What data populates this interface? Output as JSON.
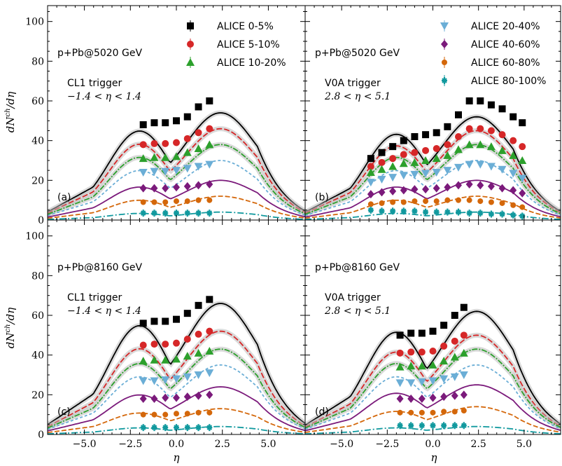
{
  "colors": {
    "c0_5": "#000000",
    "c5_10": "#d62728",
    "c10_20": "#2ca02c",
    "c20_40": "#6baed6",
    "c40_60": "#7b1a7b",
    "c60_80": "#d4670a",
    "c80_100": "#11999e",
    "band": "#aaaaaa"
  },
  "legend": [
    {
      "label": "ALICE 0-5%",
      "marker": "square",
      "color": "#000000"
    },
    {
      "label": "ALICE 5-10%",
      "marker": "circle",
      "color": "#d62728"
    },
    {
      "label": "ALICE 10-20%",
      "marker": "triangle-up",
      "color": "#2ca02c"
    },
    {
      "label": "ALICE 20-40%",
      "marker": "triangle-down",
      "color": "#6baed6"
    },
    {
      "label": "ALICE 40-60%",
      "marker": "diamond",
      "color": "#7b1a7b"
    },
    {
      "label": "ALICE 60-80%",
      "marker": "circle-small",
      "color": "#d4670a"
    },
    {
      "label": "ALICE 80-100%",
      "marker": "star",
      "color": "#11999e"
    }
  ],
  "axes": {
    "xlabel": "η",
    "ylabel": "dN^ch/dη",
    "xlim": [
      -7,
      7
    ],
    "ylim": [
      0,
      108
    ],
    "xticks": [
      "−5.0",
      "−2.5",
      "0.0",
      "2.5",
      "5.0"
    ],
    "yticks": [
      "0",
      "20",
      "40",
      "60",
      "80",
      "100"
    ]
  },
  "panels": [
    {
      "tag": "(a)",
      "system": "p+Pb@5020 GeV",
      "trigger": "CL1 trigger",
      "range": "−1.4 < η < 1.4"
    },
    {
      "tag": "(b)",
      "system": "p+Pb@5020 GeV",
      "trigger": "V0A trigger",
      "range": "2.8 < η < 5.1"
    },
    {
      "tag": "(c)",
      "system": "p+Pb@8160 GeV",
      "trigger": "CL1 trigger",
      "range": "−1.4 < η < 1.4"
    },
    {
      "tag": "(d)",
      "system": "p+Pb@8160 GeV",
      "trigger": "V0A trigger",
      "range": "2.8 < η < 5.1"
    }
  ],
  "chart_data": [
    {
      "type": "scatter",
      "panel": "(a)",
      "x": [
        -1.8,
        -1.2,
        -0.6,
        0.0,
        0.6,
        1.2,
        1.8
      ],
      "series": [
        {
          "name": "ALICE 0-5%",
          "values": [
            48,
            49,
            49,
            50,
            52,
            57,
            60
          ]
        },
        {
          "name": "ALICE 5-10%",
          "values": [
            38,
            38.5,
            38.5,
            39,
            41,
            44,
            46
          ]
        },
        {
          "name": "ALICE 10-20%",
          "values": [
            31,
            31.5,
            31.5,
            32,
            34,
            36,
            38
          ]
        },
        {
          "name": "ALICE 20-40%",
          "values": [
            24,
            24.5,
            24.5,
            25,
            26,
            27,
            28
          ]
        },
        {
          "name": "ALICE 40-60%",
          "values": [
            16,
            16,
            16,
            16.5,
            17,
            17.5,
            18
          ]
        },
        {
          "name": "ALICE 60-80%",
          "values": [
            9,
            9,
            9,
            9.5,
            9.5,
            10,
            10
          ]
        },
        {
          "name": "ALICE 80-100%",
          "values": [
            3.5,
            3.5,
            3.5,
            3.5,
            3.5,
            3.5,
            3.5
          ]
        }
      ],
      "model_peaks": [
        54,
        46,
        38,
        30,
        20,
        12,
        4
      ]
    },
    {
      "type": "scatter",
      "panel": "(b)",
      "x": [
        -3.4,
        -2.8,
        -2.2,
        -1.6,
        -1.0,
        -0.4,
        0.2,
        0.8,
        1.4,
        2.0,
        2.6,
        3.2,
        3.8,
        4.4,
        4.9
      ],
      "series": [
        {
          "name": "ALICE 0-5%",
          "values": [
            31,
            34,
            37,
            40,
            42,
            43,
            44,
            47,
            53,
            60,
            60,
            58,
            56,
            52,
            49
          ]
        },
        {
          "name": "ALICE 5-10%",
          "values": [
            27,
            29,
            31,
            33,
            34,
            35,
            36,
            38,
            42,
            46,
            46,
            45,
            43,
            40,
            37
          ]
        },
        {
          "name": "ALICE 10-20%",
          "values": [
            24,
            25.5,
            27,
            28.5,
            29,
            30,
            31,
            32.5,
            35.5,
            38,
            38,
            37,
            35,
            32.5,
            30
          ]
        },
        {
          "name": "ALICE 20-40%",
          "values": [
            19,
            20.5,
            21.5,
            22.5,
            23,
            23.5,
            24,
            25,
            26.5,
            28,
            28,
            27,
            25.5,
            23.5,
            21
          ]
        },
        {
          "name": "ALICE 40-60%",
          "values": [
            13,
            14,
            14.5,
            15,
            15.5,
            15.5,
            16,
            16.5,
            17.5,
            18,
            17.5,
            17,
            16,
            15,
            13.5
          ]
        },
        {
          "name": "ALICE 60-80%",
          "values": [
            8,
            8.5,
            9,
            9,
            9.5,
            9.5,
            9.5,
            10,
            10,
            10,
            9.5,
            9,
            8.5,
            7.5,
            6.5
          ]
        },
        {
          "name": "ALICE 80-100%",
          "values": [
            5,
            4.5,
            4.5,
            4.5,
            4.5,
            4,
            4,
            4,
            4,
            3.5,
            3.5,
            3,
            3,
            2.5,
            2
          ]
        }
      ],
      "model_peaks": [
        52,
        45,
        38,
        30,
        20,
        12,
        4
      ]
    },
    {
      "type": "scatter",
      "panel": "(c)",
      "x": [
        -1.8,
        -1.2,
        -0.6,
        0.0,
        0.6,
        1.2,
        1.8
      ],
      "series": [
        {
          "name": "ALICE 0-5%",
          "values": [
            56,
            57,
            57,
            58,
            61,
            65,
            68
          ]
        },
        {
          "name": "ALICE 5-10%",
          "values": [
            45,
            45.5,
            45.5,
            46,
            48,
            50.5,
            52
          ]
        },
        {
          "name": "ALICE 10-20%",
          "values": [
            37,
            37.5,
            37.5,
            38,
            39.5,
            41,
            42
          ]
        },
        {
          "name": "ALICE 20-40%",
          "values": [
            27,
            27,
            27.5,
            28,
            29,
            30,
            31
          ]
        },
        {
          "name": "ALICE 40-60%",
          "values": [
            18,
            18,
            18.5,
            18.5,
            19,
            19.5,
            20
          ]
        },
        {
          "name": "ALICE 60-80%",
          "values": [
            10,
            10,
            10,
            10.5,
            10.5,
            11,
            11
          ]
        },
        {
          "name": "ALICE 80-100%",
          "values": [
            3.5,
            3.5,
            3.5,
            3.5,
            3.5,
            3.5,
            3.5
          ]
        }
      ],
      "model_peaks": [
        66,
        52,
        43,
        35,
        24,
        13,
        4
      ]
    },
    {
      "type": "scatter",
      "panel": "(d)",
      "x": [
        -1.8,
        -1.2,
        -0.6,
        0.0,
        0.6,
        1.2,
        1.7
      ],
      "series": [
        {
          "name": "ALICE 0-5%",
          "values": [
            50,
            51,
            51,
            52,
            55,
            60,
            64
          ]
        },
        {
          "name": "ALICE 5-10%",
          "values": [
            41,
            41.5,
            41.5,
            42,
            44.5,
            47,
            50
          ]
        },
        {
          "name": "ALICE 10-20%",
          "values": [
            34,
            34.5,
            34.5,
            35,
            37,
            39,
            41
          ]
        },
        {
          "name": "ALICE 20-40%",
          "values": [
            26,
            26,
            26.5,
            27,
            28,
            29,
            30
          ]
        },
        {
          "name": "ALICE 40-60%",
          "values": [
            18,
            18,
            18,
            18.5,
            19,
            19.5,
            20
          ]
        },
        {
          "name": "ALICE 60-80%",
          "values": [
            11,
            11,
            11,
            11,
            11.5,
            11.5,
            12
          ]
        },
        {
          "name": "ALICE 80-100%",
          "values": [
            4.5,
            4.5,
            4.5,
            4.5,
            4.5,
            4.5,
            4.5
          ]
        }
      ],
      "model_peaks": [
        62,
        50,
        43,
        35,
        25,
        14,
        4
      ]
    }
  ]
}
